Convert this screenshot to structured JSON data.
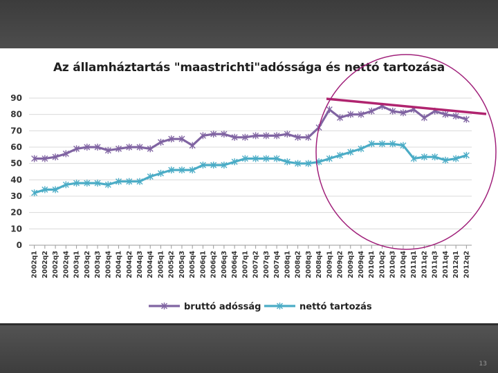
{
  "slide": {
    "number": "13"
  },
  "chart_data": {
    "type": "line",
    "title": "Az államháztartás \"maastrichti\"adóssága és nettó tartozása",
    "xlabel": "",
    "ylabel": "",
    "ylim": [
      0,
      90
    ],
    "yticks": [
      0,
      10,
      20,
      30,
      40,
      50,
      60,
      70,
      80,
      90
    ],
    "grid": true,
    "legend_position": "bottom",
    "categories": [
      "2002q1",
      "2002q2",
      "2002q3",
      "2002q4",
      "2003q1",
      "2003q2",
      "2003q3",
      "2003q4",
      "2004q1",
      "2004q2",
      "2004q3",
      "2004q4",
      "2005q1",
      "2005q2",
      "2005q3",
      "2005q4",
      "2006q1",
      "2006q2",
      "2006q3",
      "2006q4",
      "2007q1",
      "2007q2",
      "2007q3",
      "2007q4",
      "2008q1",
      "2008q2",
      "2008q3",
      "2008q4",
      "2009q1",
      "2009q2",
      "2009q3",
      "2009q4",
      "2010q1",
      "2010q2",
      "2010q3",
      "2010q4",
      "2011q1",
      "2011q2",
      "2011q3",
      "2011q4",
      "2012q1",
      "2012q2"
    ],
    "series": [
      {
        "name": "bruttó adósság",
        "color": "#8064a2",
        "values": [
          53,
          53,
          54,
          56,
          59,
          60,
          60,
          58,
          59,
          60,
          60,
          59,
          63,
          65,
          65,
          61,
          67,
          68,
          68,
          66,
          66,
          67,
          67,
          67,
          68,
          66,
          66,
          72,
          83,
          78,
          80,
          80,
          82,
          85,
          82,
          81,
          83,
          78,
          82,
          80,
          79,
          77
        ]
      },
      {
        "name": "nettó tartozás",
        "color": "#4bacc6",
        "values": [
          32,
          34,
          34,
          37,
          38,
          38,
          38,
          37,
          39,
          39,
          39,
          42,
          44,
          46,
          46,
          46,
          49,
          49,
          49,
          51,
          53,
          53,
          53,
          53,
          51,
          50,
          50,
          51,
          53,
          55,
          57,
          59,
          62,
          62,
          62,
          61,
          53,
          54,
          54,
          52,
          53,
          55
        ]
      }
    ],
    "annotations": {
      "ellipse_color": "#a0207a",
      "trend_line_color": "#b0246f"
    }
  }
}
